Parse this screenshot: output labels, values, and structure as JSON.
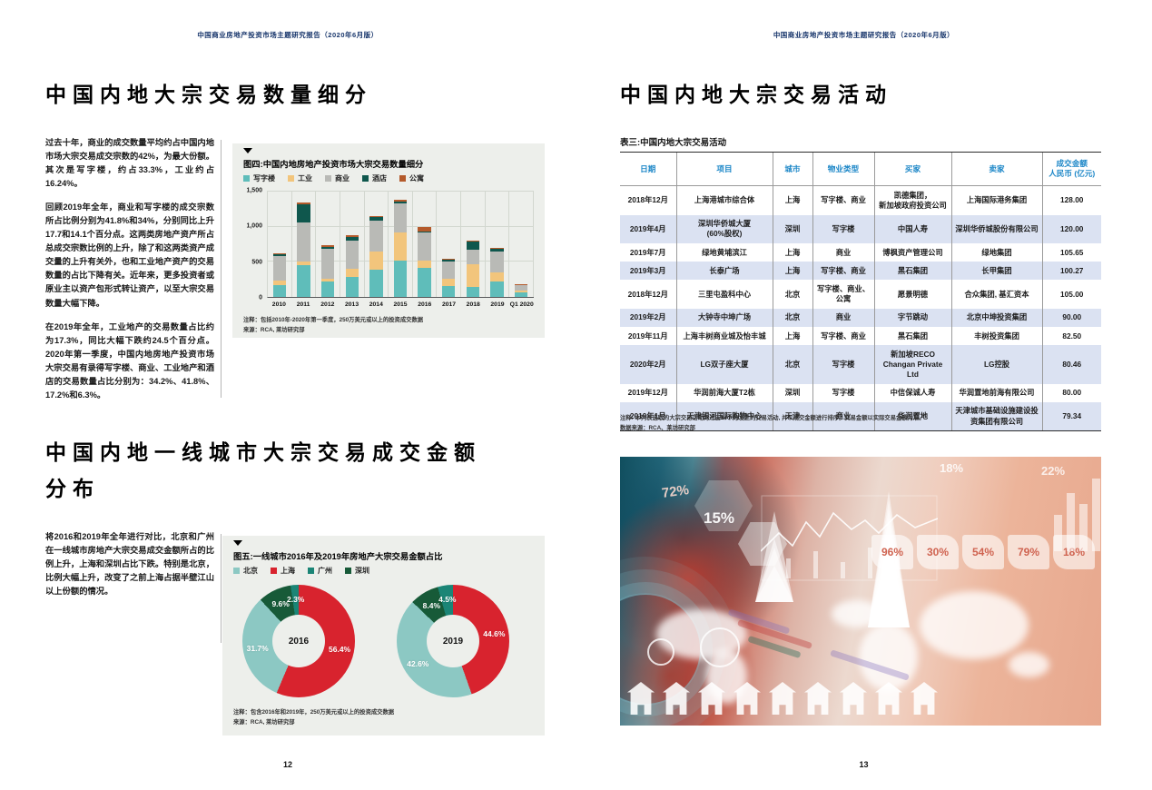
{
  "report_header": "中国商业房地产投资市场主题研究报告（2020年6月版）",
  "left_page": {
    "page_number": "12",
    "section1": {
      "title": "中国内地大宗交易数量细分",
      "paragraphs": [
        "过去十年，商业的成交数量平均约占中国内地市场大宗交易成交宗数的42%，为最大份额。其次是写字楼，约占33.3%，工业约占16.24%。",
        "回顾2019年全年，商业和写字楼的成交宗数所占比例分别为41.8%和34%，分别同比上升17.7和14.1个百分点。这两类房地产资产所占总成交宗数比例的上升，除了和这两类资产成交量的上升有关外，也和工业地产资产的交易数量的占比下降有关。近年来，更多投资者或原业主以资产包形式转让资产，以至大宗交易数量大幅下降。",
        "在2019年全年，工业地产的交易数量占比约为17.3%，同比大幅下跌约24.5个百分点。2020年第一季度，中国内地房地产投资市场大宗交易有录得写字楼、商业、工业地产和酒店的交易数量占比分别为：34.2%、41.8%、17.2%和6.3%。"
      ]
    },
    "section2": {
      "title": "中国内地一线城市大宗交易成交金额分布",
      "paragraphs": [
        "将2016和2019年全年进行对比，北京和广州在一线城市房地产大宗交易成交金额所占的比例上升，上海和深圳占比下跌。特别是北京，比例大幅上升，改变了之前上海占据半壁江山以上份额的情况。"
      ]
    }
  },
  "right_page": {
    "page_number": "13",
    "section_title": "中国内地大宗交易活动",
    "table": {
      "caption": "表三:中国内地大宗交易活动",
      "columns": [
        "日期",
        "项目",
        "城市",
        "物业类型",
        "买家",
        "卖家",
        "成交金额\n人民币 (亿元)"
      ],
      "rows": [
        [
          "2018年12月",
          "上海港城市综合体",
          "上海",
          "写字楼、商业",
          "凯德集团，\n新加坡政府投资公司",
          "上海国际港务集团",
          "128.00"
        ],
        [
          "2019年4月",
          "深圳华侨城大厦\n(60%股权)",
          "深圳",
          "写字楼",
          "中国人寿",
          "深圳华侨城股份有限公司",
          "120.00"
        ],
        [
          "2019年7月",
          "绿地黄埔滨江",
          "上海",
          "商业",
          "博枫资产管理公司",
          "绿地集团",
          "105.65"
        ],
        [
          "2019年3月",
          "长泰广场",
          "上海",
          "写字楼、商业",
          "黑石集团",
          "长甲集团",
          "100.27"
        ],
        [
          "2018年12月",
          "三里屯盈科中心",
          "北京",
          "写字楼、商业、公寓",
          "愿景明德",
          "合众集团, 基汇资本",
          "105.00"
        ],
        [
          "2019年2月",
          "大钟寺中坤广场",
          "北京",
          "商业",
          "字节跳动",
          "北京中坤投资集团",
          "90.00"
        ],
        [
          "2019年11月",
          "上海丰树商业城及怡丰城",
          "上海",
          "写字楼、商业",
          "黑石集团",
          "丰树投资集团",
          "82.50"
        ],
        [
          "2020年2月",
          "LG双子座大厦",
          "北京",
          "写字楼",
          "新加坡RECO\nChangan Private Ltd",
          "LG控股",
          "80.46"
        ],
        [
          "2019年12月",
          "华润前海大厦T2栋",
          "深圳",
          "写字楼",
          "中信保诚人寿",
          "华润置地前海有限公司",
          "80.00"
        ],
        [
          "2019年1月",
          "天津银河国际购物中心",
          "天津",
          "商业",
          "华润置地",
          "天津城市基础设施建设投资集团有限公司",
          "79.34"
        ]
      ],
      "notes": [
        "注释: 本列表选取的大宗交易活动为过去24个月发生的交易活动, 并以成交金额进行排序。交易金额以实际交易金额为准。",
        "数据来源：RCA、莱坊研究部"
      ]
    },
    "photo": {
      "badges": [
        "96%",
        "30%",
        "54%",
        "79%",
        "18%"
      ],
      "labels": {
        "p72": "72%",
        "p15": "15%",
        "p18": "18%",
        "p22": "22%"
      }
    }
  },
  "chart_data": [
    {
      "type": "bar",
      "stacked": true,
      "title": "图四:中国内地房地产投资市场大宗交易数量细分",
      "categories": [
        "2010",
        "2011",
        "2012",
        "2013",
        "2014",
        "2015",
        "2016",
        "2017",
        "2018",
        "2019",
        "Q1 2020"
      ],
      "series": [
        {
          "name": "写字楼",
          "color": "#5fbdba",
          "values": [
            170,
            455,
            225,
            280,
            385,
            520,
            415,
            160,
            140,
            220,
            60
          ]
        },
        {
          "name": "工业",
          "color": "#f2c57c",
          "values": [
            60,
            45,
            35,
            120,
            265,
            400,
            105,
            100,
            330,
            130,
            30
          ]
        },
        {
          "name": "商业",
          "color": "#b9bab6",
          "values": [
            350,
            560,
            430,
            400,
            440,
            410,
            400,
            240,
            200,
            300,
            80
          ]
        },
        {
          "name": "酒店",
          "color": "#0f574d",
          "values": [
            25,
            265,
            25,
            50,
            50,
            30,
            10,
            30,
            120,
            40,
            5
          ]
        },
        {
          "name": "公寓",
          "color": "#b45a2b",
          "values": [
            20,
            25,
            25,
            30,
            10,
            30,
            70,
            20,
            10,
            10,
            5
          ]
        }
      ],
      "ylim": [
        0,
        1500
      ],
      "yticks": [
        "0",
        "500",
        "1,000",
        "1,500"
      ],
      "grid": true,
      "legend_position": "top",
      "notes": [
        "注释：包括2010年-2020年第一季度，250万美元或以上的投资成交数据",
        "来源：RCA, 莱坊研究部"
      ]
    },
    {
      "type": "pie",
      "title": "图五:一线城市2016年及2019年房地产大宗交易金额占比",
      "legend": [
        {
          "name": "北京",
          "color": "#8cc8c3"
        },
        {
          "name": "上海",
          "color": "#d8232e"
        },
        {
          "name": "广州",
          "color": "#1b8576"
        },
        {
          "name": "深圳",
          "color": "#175a38"
        }
      ],
      "donuts": [
        {
          "label": "2016",
          "slices": [
            {
              "name": "上海",
              "value": 56.4
            },
            {
              "name": "北京",
              "value": 31.7
            },
            {
              "name": "深圳",
              "value": 9.6
            },
            {
              "name": "广州",
              "value": 2.3
            }
          ]
        },
        {
          "label": "2019",
          "slices": [
            {
              "name": "上海",
              "value": 44.6
            },
            {
              "name": "北京",
              "value": 42.6
            },
            {
              "name": "深圳",
              "value": 8.4
            },
            {
              "name": "广州",
              "value": 4.5
            }
          ]
        }
      ],
      "notes": [
        "注释：包含2016年和2019年，250万美元或以上的投资成交数据",
        "来源：RCA, 莱坊研究部"
      ]
    }
  ]
}
